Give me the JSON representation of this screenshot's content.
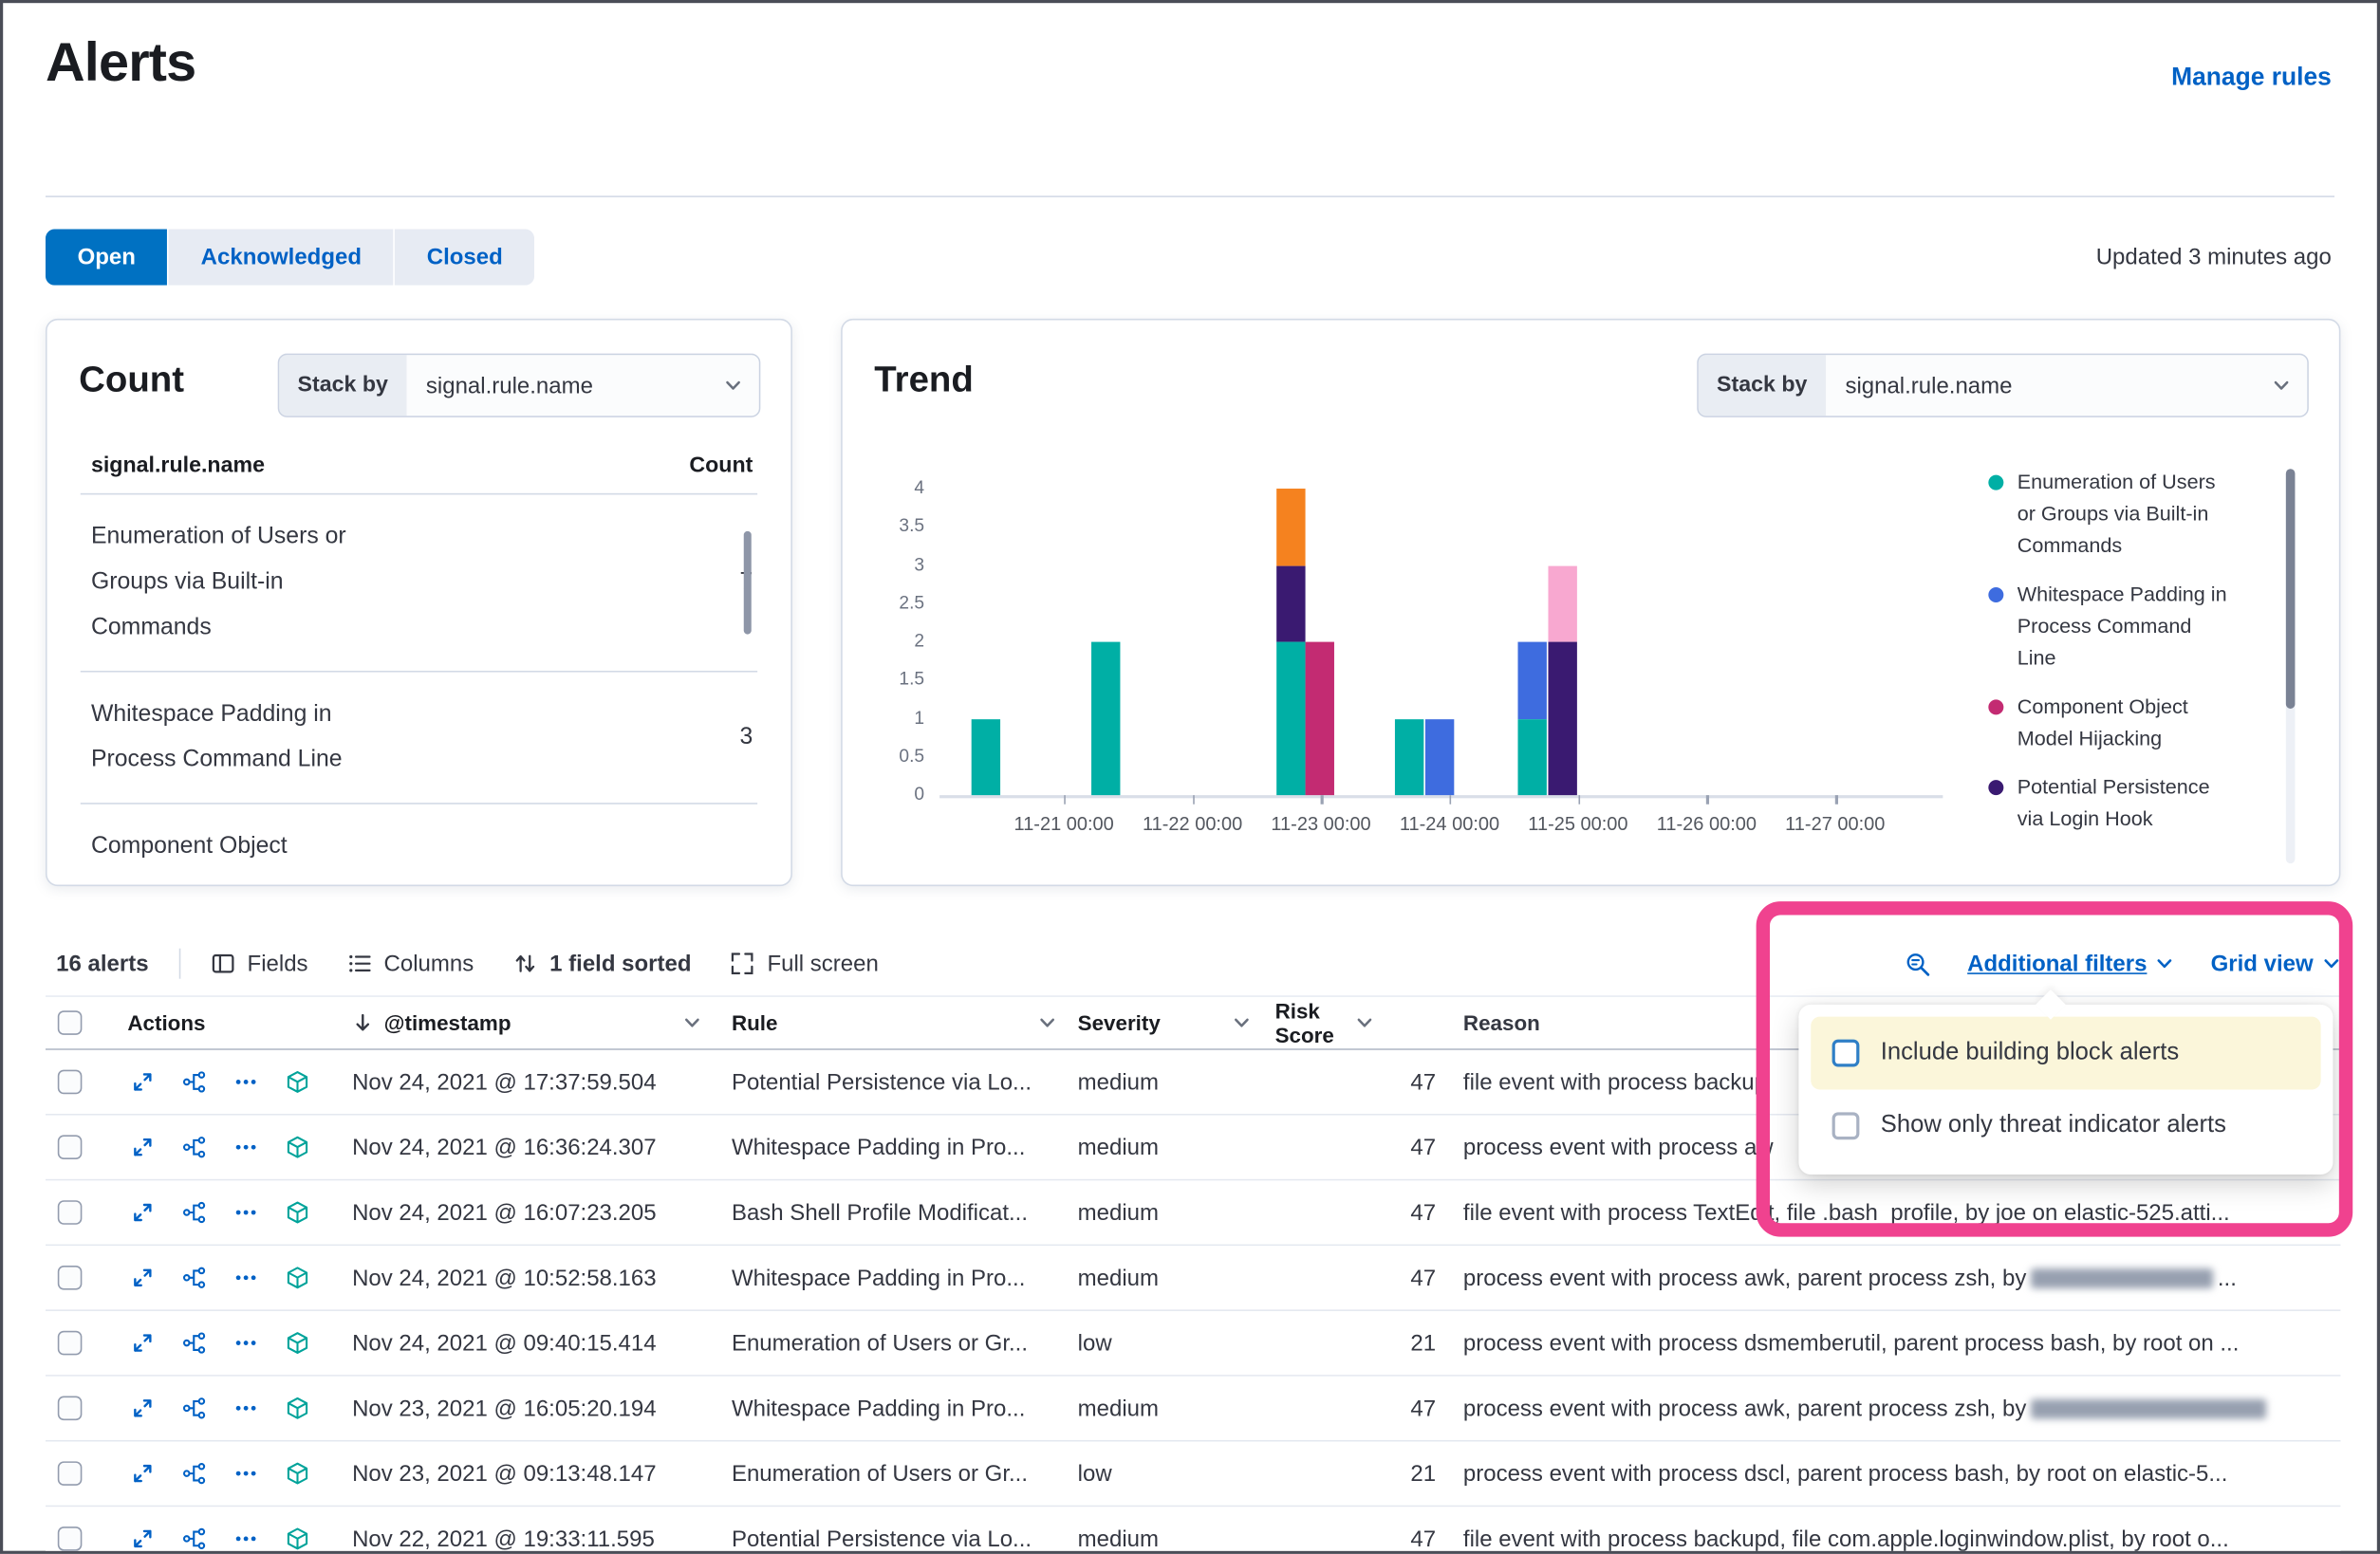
{
  "page": {
    "title": "Alerts",
    "manage_rules": "Manage rules",
    "updated": "Updated 3 minutes ago"
  },
  "tabs": [
    {
      "label": "Open",
      "active": true
    },
    {
      "label": "Acknowledged",
      "active": false
    },
    {
      "label": "Closed",
      "active": false
    }
  ],
  "count_panel": {
    "title": "Count",
    "stack_by_label": "Stack by",
    "stack_by_value": "signal.rule.name",
    "columns": {
      "name": "signal.rule.name",
      "count": "Count"
    },
    "rows": [
      {
        "name": "Enumeration of Users or Groups via Built-in Commands",
        "count": "7"
      },
      {
        "name": "Whitespace Padding in Process Command Line",
        "count": "3"
      },
      {
        "name": "Component Object",
        "count": ""
      }
    ]
  },
  "trend_panel": {
    "title": "Trend",
    "stack_by_label": "Stack by",
    "stack_by_value": "signal.rule.name"
  },
  "chart_data": {
    "type": "bar",
    "stacked": true,
    "title": "Trend",
    "ylim": [
      0,
      4
    ],
    "yticks": [
      "4",
      "3.5",
      "3",
      "2.5",
      "2",
      "1.5",
      "1",
      "0.5",
      "0"
    ],
    "xticks": [
      "11-21 00:00",
      "11-22 00:00",
      "11-23 00:00",
      "11-24 00:00",
      "11-25 00:00",
      "11-26 00:00",
      "11-27 00:00"
    ],
    "series": [
      {
        "name": "Enumeration of Users or Groups via Built-in Commands",
        "color": "#00afa5",
        "in_legend": true
      },
      {
        "name": "Whitespace Padding in Process Command Line",
        "color": "#3e6cdf",
        "in_legend": true
      },
      {
        "name": "Component Object Model Hijacking",
        "color": "#c32b72",
        "in_legend": true
      },
      {
        "name": "Potential Persistence via Login Hook",
        "color": "#3a1a71",
        "in_legend": true
      },
      {
        "name": "",
        "color": "#f5821f",
        "in_legend": false
      },
      {
        "name": "",
        "color": "#f8a8d0",
        "in_legend": false
      }
    ],
    "legend_visible_series": [
      0,
      1,
      2,
      3
    ],
    "bars": [
      {
        "x_frac": 0.032,
        "segments": [
          {
            "series": 0,
            "value": 1
          }
        ]
      },
      {
        "x_frac": 0.151,
        "segments": [
          {
            "series": 0,
            "value": 2
          }
        ]
      },
      {
        "x_frac": 0.336,
        "segments": [
          {
            "series": 0,
            "value": 2
          },
          {
            "series": 3,
            "value": 1
          },
          {
            "series": 4,
            "value": 1
          }
        ]
      },
      {
        "x_frac": 0.365,
        "segments": [
          {
            "series": 2,
            "value": 2
          }
        ]
      },
      {
        "x_frac": 0.454,
        "segments": [
          {
            "series": 0,
            "value": 1
          }
        ]
      },
      {
        "x_frac": 0.484,
        "segments": [
          {
            "series": 1,
            "value": 1
          }
        ]
      },
      {
        "x_frac": 0.576,
        "segments": [
          {
            "series": 0,
            "value": 1
          },
          {
            "series": 1,
            "value": 1
          }
        ]
      },
      {
        "x_frac": 0.607,
        "segments": [
          {
            "series": 3,
            "value": 2
          },
          {
            "series": 5,
            "value": 1
          }
        ]
      }
    ]
  },
  "toolbar": {
    "alert_count": "16 alerts",
    "fields": "Fields",
    "columns": "Columns",
    "sorted": "1 field sorted",
    "full_screen": "Full screen",
    "additional_filters": "Additional filters",
    "grid_view": "Grid view"
  },
  "filters_popup": {
    "options": [
      {
        "label": "Include building block alerts",
        "highlighted": true,
        "checked": false
      },
      {
        "label": "Show only threat indicator alerts",
        "highlighted": false,
        "checked": false
      }
    ]
  },
  "alerts_table": {
    "headers": {
      "actions": "Actions",
      "timestamp": "@timestamp",
      "rule": "Rule",
      "severity": "Severity",
      "risk_score": "Risk Score",
      "reason": "Reason"
    },
    "rows": [
      {
        "timestamp": "Nov 24, 2021 @ 17:37:59.504",
        "rule": "Potential Persistence via Lo...",
        "severity": "medium",
        "risk_score": "47",
        "reason": [
          {
            "t": "file event with process backup"
          }
        ]
      },
      {
        "timestamp": "Nov 24, 2021 @ 16:36:24.307",
        "rule": "Whitespace Padding in Pro...",
        "severity": "medium",
        "risk_score": "47",
        "reason": [
          {
            "t": "process event with process aw"
          }
        ]
      },
      {
        "timestamp": "Nov 24, 2021 @ 16:07:23.205",
        "rule": "Bash Shell Profile Modificat...",
        "severity": "medium",
        "risk_score": "47",
        "reason": [
          {
            "t": "file event with process TextEdit, file .bash_profile, by joe on elastic-525.atti..."
          }
        ]
      },
      {
        "timestamp": "Nov 24, 2021 @ 10:52:58.163",
        "rule": "Whitespace Padding in Pro...",
        "severity": "medium",
        "risk_score": "47",
        "reason": [
          {
            "t": "process event with process awk, parent process zsh, by "
          },
          {
            "blur": 120
          },
          {
            "t": " ..."
          }
        ]
      },
      {
        "timestamp": "Nov 24, 2021 @ 09:40:15.414",
        "rule": "Enumeration of Users or Gr...",
        "severity": "low",
        "risk_score": "21",
        "reason": [
          {
            "t": "process event with process dsmemberutil, parent process bash, by root on ..."
          }
        ]
      },
      {
        "timestamp": "Nov 23, 2021 @ 16:05:20.194",
        "rule": "Whitespace Padding in Pro...",
        "severity": "medium",
        "risk_score": "47",
        "reason": [
          {
            "t": "process event with process awk, parent process zsh, by "
          },
          {
            "blur": 155
          }
        ]
      },
      {
        "timestamp": "Nov 23, 2021 @ 09:13:48.147",
        "rule": "Enumeration of Users or Gr...",
        "severity": "low",
        "risk_score": "21",
        "reason": [
          {
            "t": "process event with process dscl, parent process bash, by root on elastic-5..."
          }
        ]
      },
      {
        "timestamp": "Nov 22, 2021 @ 19:33:11.595",
        "rule": "Potential Persistence via Lo...",
        "severity": "medium",
        "risk_score": "47",
        "reason": [
          {
            "t": "file event with process backupd, file com.apple.loginwindow.plist, by root o..."
          }
        ]
      }
    ]
  },
  "icons": {
    "toolbar": [
      "fields-icon",
      "columns-icon",
      "sort-icon",
      "fullscreen-icon",
      "inspect-icon",
      "chevron-down-icon"
    ],
    "row_actions": [
      "expand-alert-icon",
      "analyze-event-icon",
      "more-actions-icon",
      "endpoint-cube-icon"
    ]
  },
  "colors": {
    "primary_button": "#0071c2",
    "link": "#0061c5",
    "highlight_annotation": "#f0428f",
    "option_highlight": "#fbf6da",
    "panel_border": "#d3dae6",
    "text": "#343741"
  }
}
